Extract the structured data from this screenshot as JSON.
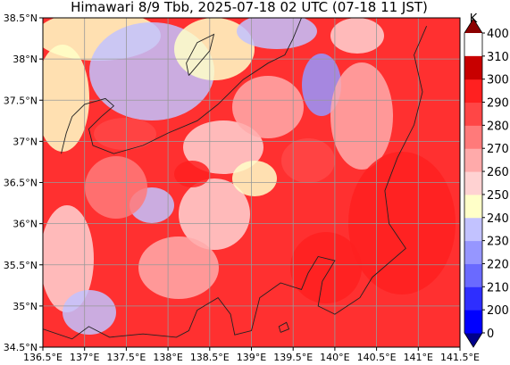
{
  "title": "Himawari 8/9 Tbb, 2025-07-18 02 UTC (07-18 11 JST)",
  "map": {
    "lon_range": [
      136.5,
      141.5
    ],
    "lat_range": [
      34.5,
      38.5
    ],
    "lon_ticks": [
      "136.5°E",
      "137°E",
      "137.5°E",
      "138°E",
      "138.5°E",
      "139°E",
      "139.5°E",
      "140°E",
      "140.5°E",
      "141°E",
      "141.5°E"
    ],
    "lat_ticks": [
      "38.5°N",
      "38°N",
      "37.5°N",
      "37°N",
      "36.5°N",
      "36°N",
      "35.5°N",
      "35°N",
      "34.5°N"
    ],
    "grid": true,
    "coastlines": true,
    "prefecture_borders": true
  },
  "colorbar": {
    "unit": "K",
    "levels": [
      "0",
      "200",
      "210",
      "220",
      "230",
      "240",
      "250",
      "260",
      "270",
      "280",
      "290",
      "300",
      "310",
      "400"
    ],
    "colors": [
      "#00008b",
      "#0000ff",
      "#2e2eff",
      "#6a6aff",
      "#9696ff",
      "#c2c2ff",
      "#ffffc8",
      "#ffd2d2",
      "#ffaaaa",
      "#ff7a7a",
      "#ff4646",
      "#ff2020",
      "#c80000",
      "#8b0000"
    ],
    "extend": "both"
  }
}
